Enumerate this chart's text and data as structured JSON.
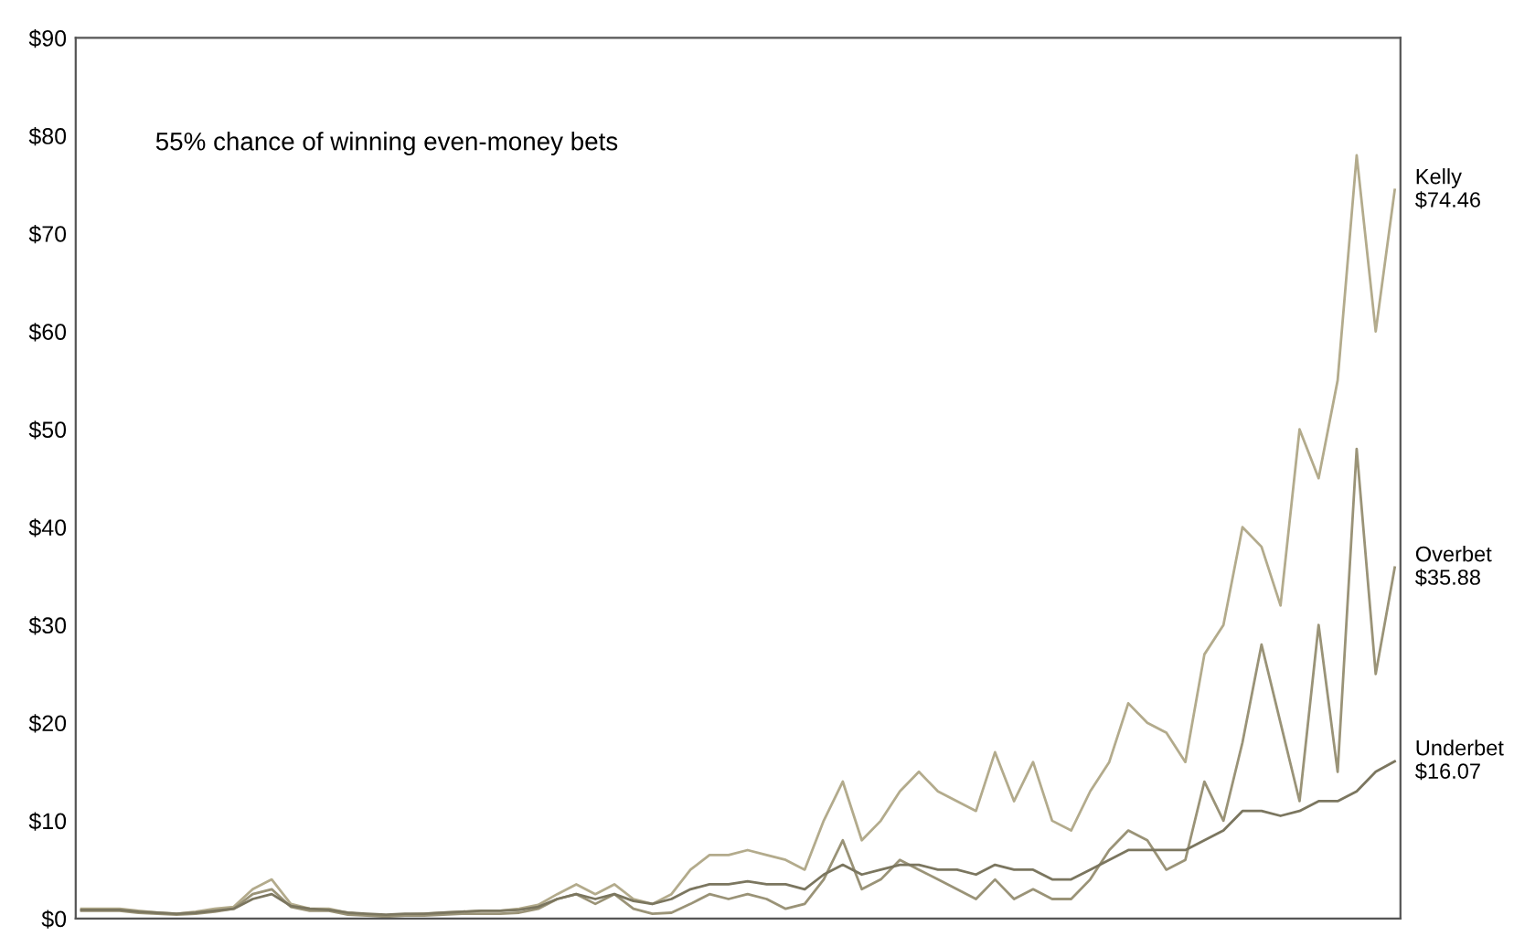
{
  "chart_data": {
    "type": "line",
    "annotations": [
      "55% chance of winning even-money bets"
    ],
    "categories": [
      null,
      null,
      null,
      null,
      null,
      null,
      null,
      null,
      null,
      null,
      null,
      null,
      null,
      null,
      null,
      null,
      null,
      null,
      null,
      null,
      null,
      null,
      null,
      null,
      null,
      null,
      null,
      null,
      null,
      null,
      null,
      null,
      null,
      null,
      null,
      null,
      null,
      null,
      null,
      null,
      null,
      null,
      null,
      null,
      null,
      null,
      null,
      null,
      null,
      null,
      null,
      null,
      null,
      null,
      null,
      null,
      null,
      null,
      null,
      null,
      null,
      null,
      null,
      null,
      null,
      null,
      null,
      null,
      null,
      null
    ],
    "series": [
      {
        "name": "Kelly",
        "color": "#b3ab8c",
        "values": [
          1.0,
          1.0,
          1.0,
          0.8,
          0.6,
          0.5,
          0.7,
          1.0,
          1.2,
          3,
          4,
          1.5,
          1.0,
          1.0,
          0.6,
          0.4,
          0.3,
          0.4,
          0.5,
          0.6,
          0.7,
          0.8,
          0.8,
          1.0,
          1.4,
          2.5,
          3.5,
          2.5,
          3.5,
          2.0,
          1.5,
          2.5,
          5,
          6.5,
          6.5,
          7,
          6.5,
          6,
          5,
          10,
          14,
          8,
          10,
          13,
          15,
          13,
          12,
          11,
          17,
          12,
          16,
          10,
          9,
          13,
          16,
          22,
          20,
          19,
          16,
          27,
          30,
          40,
          38,
          32,
          50,
          45,
          55,
          78,
          60,
          74.46
        ],
        "value_labels": [
          null,
          null,
          null,
          null,
          null,
          null,
          null,
          null,
          null,
          null,
          null,
          null,
          null,
          null,
          null,
          null,
          null,
          null,
          null,
          null,
          null,
          null,
          null,
          null,
          null,
          null,
          null,
          null,
          null,
          null,
          null,
          null,
          null,
          null,
          null,
          null,
          null,
          null,
          null,
          null,
          null,
          null,
          null,
          null,
          null,
          null,
          null,
          null,
          null,
          null,
          null,
          null,
          null,
          null,
          null,
          null,
          null,
          null,
          null,
          null,
          null,
          null,
          null,
          null,
          null,
          null,
          null,
          null,
          null,
          "$74.46"
        ]
      },
      {
        "name": "Overbet",
        "color": "#9a9377",
        "values": [
          0.8,
          0.8,
          0.8,
          0.6,
          0.5,
          0.4,
          0.5,
          0.7,
          1.0,
          2.5,
          3,
          1.2,
          0.8,
          0.8,
          0.4,
          0.3,
          0.2,
          0.3,
          0.3,
          0.4,
          0.5,
          0.5,
          0.5,
          0.6,
          1.0,
          2.0,
          2.5,
          1.5,
          2.5,
          1.0,
          0.5,
          0.6,
          1.5,
          2.5,
          2.0,
          2.5,
          2.0,
          1.0,
          1.5,
          4,
          8,
          3,
          4,
          6,
          5,
          4,
          3,
          2,
          4,
          2,
          3,
          2,
          2,
          4,
          7,
          9,
          8,
          5,
          6,
          14,
          10,
          18,
          28,
          20,
          12,
          30,
          15,
          48,
          25,
          35.88
        ],
        "value_labels": [
          null,
          null,
          null,
          null,
          null,
          null,
          null,
          null,
          null,
          null,
          null,
          null,
          null,
          null,
          null,
          null,
          null,
          null,
          null,
          null,
          null,
          null,
          null,
          null,
          null,
          null,
          null,
          null,
          null,
          null,
          null,
          null,
          null,
          null,
          null,
          null,
          null,
          null,
          null,
          null,
          null,
          null,
          null,
          null,
          null,
          null,
          null,
          null,
          null,
          null,
          null,
          null,
          null,
          null,
          null,
          null,
          null,
          null,
          null,
          null,
          null,
          null,
          null,
          null,
          null,
          null,
          null,
          null,
          null,
          "$35.88"
        ]
      },
      {
        "name": "Underbet",
        "color": "#7b765f",
        "values": [
          0.9,
          0.9,
          0.9,
          0.7,
          0.6,
          0.5,
          0.6,
          0.8,
          1.0,
          2,
          2.5,
          1.3,
          1.0,
          0.9,
          0.6,
          0.5,
          0.4,
          0.5,
          0.5,
          0.6,
          0.7,
          0.8,
          0.8,
          0.9,
          1.2,
          2,
          2.5,
          2,
          2.5,
          1.8,
          1.5,
          2,
          3,
          3.5,
          3.5,
          3.8,
          3.5,
          3.5,
          3,
          4.5,
          5.5,
          4.5,
          5,
          5.5,
          5.5,
          5,
          5,
          4.5,
          5.5,
          5,
          5,
          4,
          4,
          5,
          6,
          7,
          7,
          7,
          7,
          8,
          9,
          11,
          11,
          10.5,
          11,
          12,
          12,
          13,
          15,
          16.07
        ],
        "value_labels": [
          null,
          null,
          null,
          null,
          null,
          null,
          null,
          null,
          null,
          null,
          null,
          null,
          null,
          null,
          null,
          null,
          null,
          null,
          null,
          null,
          null,
          null,
          null,
          null,
          null,
          null,
          null,
          null,
          null,
          null,
          null,
          null,
          null,
          null,
          null,
          null,
          null,
          null,
          null,
          null,
          null,
          null,
          null,
          null,
          null,
          null,
          null,
          null,
          null,
          null,
          null,
          null,
          null,
          null,
          null,
          null,
          null,
          null,
          null,
          null,
          null,
          null,
          null,
          null,
          null,
          null,
          null,
          null,
          null,
          "$16.07"
        ]
      }
    ],
    "ylim": [
      0,
      90
    ],
    "yticks": [
      {
        "value": 0,
        "label": "$0"
      },
      {
        "value": 10,
        "label": "$10"
      },
      {
        "value": 20,
        "label": "$20"
      },
      {
        "value": 30,
        "label": "$30"
      },
      {
        "value": 40,
        "label": "$40"
      },
      {
        "value": 50,
        "label": "$50"
      },
      {
        "value": 60,
        "label": "$60"
      },
      {
        "value": 70,
        "label": "$70"
      },
      {
        "value": 80,
        "label": "$80"
      },
      {
        "value": 90,
        "label": "$90"
      }
    ],
    "tick_labels": "y"
  }
}
